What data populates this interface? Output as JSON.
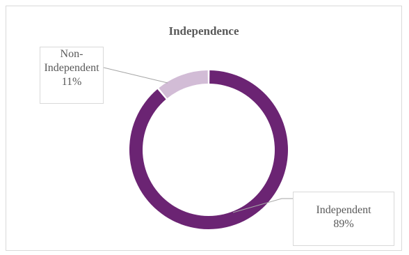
{
  "chart_data": {
    "type": "pie",
    "variant": "doughnut",
    "title": "Independence",
    "categories": [
      "Independent",
      "Non-Independent"
    ],
    "values": [
      89,
      11
    ],
    "labels": [
      {
        "category": "Independent",
        "value": "89%"
      },
      {
        "category": "Non-Independent",
        "value": "11%"
      }
    ],
    "colors": [
      "#6b2473",
      "#d2bcd6"
    ],
    "legend": "none"
  }
}
